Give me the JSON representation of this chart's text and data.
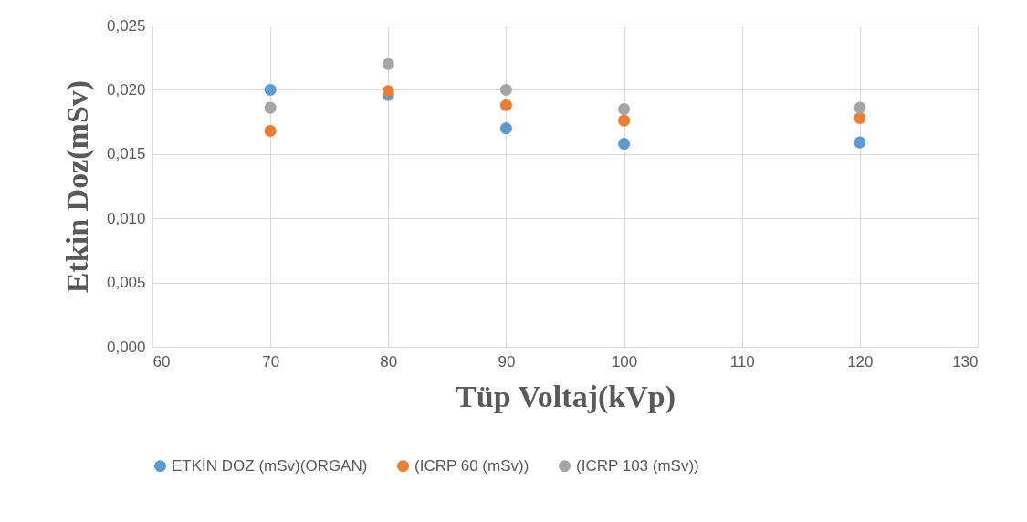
{
  "chart_data": {
    "type": "scatter",
    "xlabel": "Tüp Voltaj(kVp)",
    "ylabel": "Etkin Doz(mSv)",
    "x": [
      70,
      80,
      90,
      100,
      120
    ],
    "series": [
      {
        "name": "ETKİN DOZ (mSv)(ORGAN)",
        "color": "#5b9bd5",
        "values": [
          0.02,
          0.0196,
          0.017,
          0.0158,
          0.0159
        ]
      },
      {
        "name": "(ICRP 60 (mSv))",
        "color": "#ed7d31",
        "values": [
          0.0168,
          0.0199,
          0.0188,
          0.0176,
          0.0178
        ]
      },
      {
        "name": "(ICRP 103 (mSv))",
        "color": "#a5a5a5",
        "values": [
          0.0186,
          0.022,
          0.02,
          0.0185,
          0.0186
        ]
      }
    ],
    "xlim": [
      60,
      130
    ],
    "xticks": [
      60,
      70,
      80,
      90,
      100,
      110,
      120,
      130
    ],
    "ylim": [
      0,
      0.025
    ],
    "yticks": [
      {
        "value": 0,
        "label": "0,000"
      },
      {
        "value": 0.005,
        "label": "0,005"
      },
      {
        "value": 0.01,
        "label": "0,010"
      },
      {
        "value": 0.015,
        "label": "0,015"
      },
      {
        "value": 0.02,
        "label": "0,020"
      },
      {
        "value": 0.025,
        "label": "0,025"
      }
    ],
    "grid": true,
    "legend": "bottom",
    "marker": "circle"
  }
}
